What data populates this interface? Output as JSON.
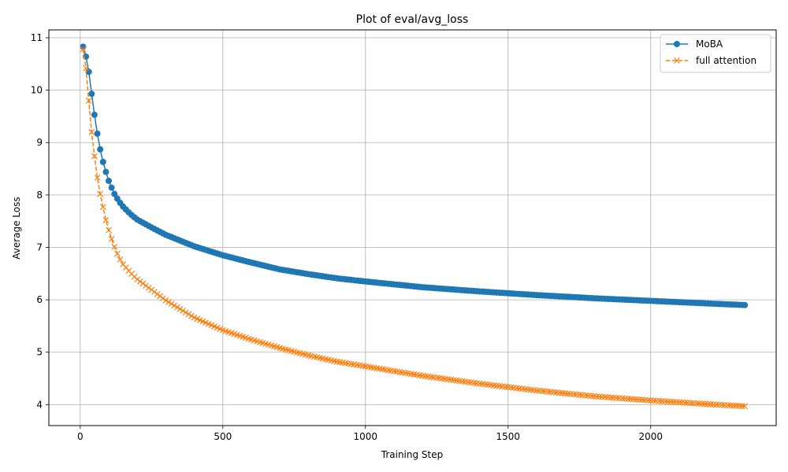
{
  "chart_data": {
    "type": "line",
    "title": "Plot of eval/avg_loss",
    "xlabel": "Training Step",
    "ylabel": "Average Loss",
    "xlim": [
      -110,
      2440
    ],
    "ylim": [
      3.6,
      11.15
    ],
    "xticks": [
      0,
      500,
      1000,
      1500,
      2000
    ],
    "yticks": [
      4,
      5,
      6,
      7,
      8,
      9,
      10,
      11
    ],
    "grid": true,
    "legend_position": "top-right",
    "sample_step": 10,
    "series": [
      {
        "name": "MoBA",
        "color": "#1f77b4",
        "style": "solid",
        "marker": "circle",
        "anchors": [
          [
            10,
            10.83
          ],
          [
            20,
            10.64
          ],
          [
            30,
            10.35
          ],
          [
            40,
            9.93
          ],
          [
            50,
            9.53
          ],
          [
            60,
            9.17
          ],
          [
            70,
            8.87
          ],
          [
            80,
            8.63
          ],
          [
            90,
            8.44
          ],
          [
            100,
            8.27
          ],
          [
            110,
            8.14
          ],
          [
            120,
            8.02
          ],
          [
            130,
            7.93
          ],
          [
            140,
            7.85
          ],
          [
            150,
            7.78
          ],
          [
            175,
            7.64
          ],
          [
            200,
            7.53
          ],
          [
            250,
            7.38
          ],
          [
            300,
            7.24
          ],
          [
            400,
            7.02
          ],
          [
            500,
            6.85
          ],
          [
            600,
            6.71
          ],
          [
            700,
            6.58
          ],
          [
            800,
            6.49
          ],
          [
            900,
            6.41
          ],
          [
            1000,
            6.35
          ],
          [
            1200,
            6.24
          ],
          [
            1400,
            6.16
          ],
          [
            1600,
            6.09
          ],
          [
            1800,
            6.03
          ],
          [
            2000,
            5.98
          ],
          [
            2200,
            5.93
          ],
          [
            2330,
            5.9
          ]
        ]
      },
      {
        "name": "full attention",
        "color": "#ff7f0e",
        "style": "dashed",
        "marker": "x",
        "anchors": [
          [
            10,
            10.78
          ],
          [
            20,
            10.42
          ],
          [
            30,
            9.8
          ],
          [
            40,
            9.2
          ],
          [
            50,
            8.74
          ],
          [
            60,
            8.33
          ],
          [
            70,
            8.02
          ],
          [
            80,
            7.77
          ],
          [
            90,
            7.52
          ],
          [
            100,
            7.33
          ],
          [
            110,
            7.16
          ],
          [
            120,
            7.01
          ],
          [
            130,
            6.88
          ],
          [
            140,
            6.77
          ],
          [
            150,
            6.68
          ],
          [
            175,
            6.52
          ],
          [
            200,
            6.39
          ],
          [
            250,
            6.19
          ],
          [
            300,
            5.99
          ],
          [
            400,
            5.66
          ],
          [
            500,
            5.42
          ],
          [
            600,
            5.24
          ],
          [
            700,
            5.08
          ],
          [
            800,
            4.94
          ],
          [
            900,
            4.82
          ],
          [
            1000,
            4.73
          ],
          [
            1200,
            4.55
          ],
          [
            1400,
            4.4
          ],
          [
            1600,
            4.27
          ],
          [
            1800,
            4.16
          ],
          [
            2000,
            4.08
          ],
          [
            2200,
            4.01
          ],
          [
            2330,
            3.97
          ]
        ]
      }
    ]
  }
}
